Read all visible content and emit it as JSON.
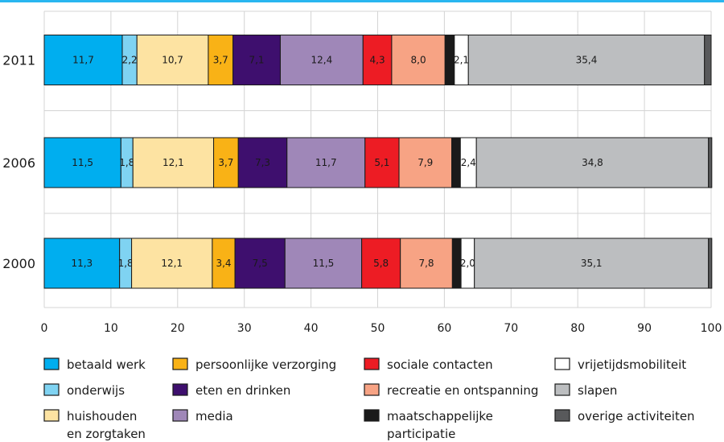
{
  "chart_data": {
    "type": "bar",
    "orientation": "horizontal",
    "stacked": true,
    "categories": [
      "2011",
      "2006",
      "2000"
    ],
    "xlim": [
      0,
      100
    ],
    "xticks": [
      0,
      10,
      20,
      30,
      40,
      50,
      60,
      70,
      80,
      90,
      100
    ],
    "xtick_labels": [
      "0",
      "10",
      "20",
      "30",
      "40",
      "50",
      "60",
      "70",
      "80",
      "90",
      "100"
    ],
    "grid": true,
    "legend_position": "bottom",
    "series": [
      {
        "name": "betaald werk",
        "color": "#00aeef",
        "values": [
          11.7,
          11.5,
          11.3
        ],
        "labels": [
          "11,7",
          "11,5",
          "11,3"
        ]
      },
      {
        "name": "onderwijs",
        "color": "#7fd3f2",
        "values": [
          2.2,
          1.8,
          1.8
        ],
        "labels": [
          "2,2",
          "1,8",
          "1,8"
        ]
      },
      {
        "name": "huishouden en zorgtaken",
        "color": "#fde3a2",
        "values": [
          10.7,
          12.1,
          12.1
        ],
        "labels": [
          "10,7",
          "12,1",
          "12,1"
        ]
      },
      {
        "name": "persoonlijke verzorging",
        "color": "#f9b216",
        "values": [
          3.7,
          3.7,
          3.4
        ],
        "labels": [
          "3,7",
          "3,7",
          "3,4"
        ]
      },
      {
        "name": "eten en drinken",
        "color": "#3e0f6e",
        "values": [
          7.1,
          7.3,
          7.5
        ],
        "labels": [
          "7,1",
          "7,3",
          "7,5"
        ]
      },
      {
        "name": "media",
        "color": "#9f87b8",
        "values": [
          12.4,
          11.7,
          11.5
        ],
        "labels": [
          "12,4",
          "11,7",
          "11,5"
        ]
      },
      {
        "name": "sociale contacten",
        "color": "#ed1c24",
        "values": [
          4.3,
          5.1,
          5.8
        ],
        "labels": [
          "4,3",
          "5,1",
          "5,8"
        ]
      },
      {
        "name": "recreatie en ontspanning",
        "color": "#f7a384",
        "values": [
          8.0,
          7.9,
          7.8
        ],
        "labels": [
          "8,0",
          "7,9",
          "7,8"
        ]
      },
      {
        "name": "maatschappelijke participatie",
        "color": "#1a1a1a",
        "values": [
          1.4,
          1.3,
          1.3
        ],
        "labels": [
          "",
          "",
          ""
        ]
      },
      {
        "name": "vrijetijdsmobiliteit",
        "color": "#ffffff",
        "values": [
          2.1,
          2.4,
          2.0
        ],
        "labels": [
          "2,1",
          "2,4",
          "2,0"
        ]
      },
      {
        "name": "slapen",
        "color": "#bcbec0",
        "values": [
          35.4,
          34.8,
          35.1
        ],
        "labels": [
          "35,4",
          "34,8",
          "35,1"
        ]
      },
      {
        "name": "overige activiteiten",
        "color": "#58595b",
        "values": [
          1.0,
          0.5,
          0.5
        ],
        "labels": [
          "",
          "",
          ""
        ]
      }
    ],
    "legend": [
      [
        "betaald werk"
      ],
      [
        "onderwijs"
      ],
      [
        "huishouden",
        "en zorgtaken"
      ],
      [
        "persoonlijke verzorging"
      ],
      [
        "eten en drinken"
      ],
      [
        "media"
      ],
      [
        "sociale contacten"
      ],
      [
        "recreatie en ontspanning"
      ],
      [
        "maatschappelijke",
        "participatie"
      ],
      [
        "vrijetijdsmobiliteit"
      ],
      [
        "slapen"
      ],
      [
        "overige activiteiten"
      ]
    ],
    "colors": {
      "top_rule": "#29b6f0",
      "grid": "#d4d4d4",
      "axis": "#1a1a1a",
      "bar_stroke": "#1a1a1a"
    }
  }
}
